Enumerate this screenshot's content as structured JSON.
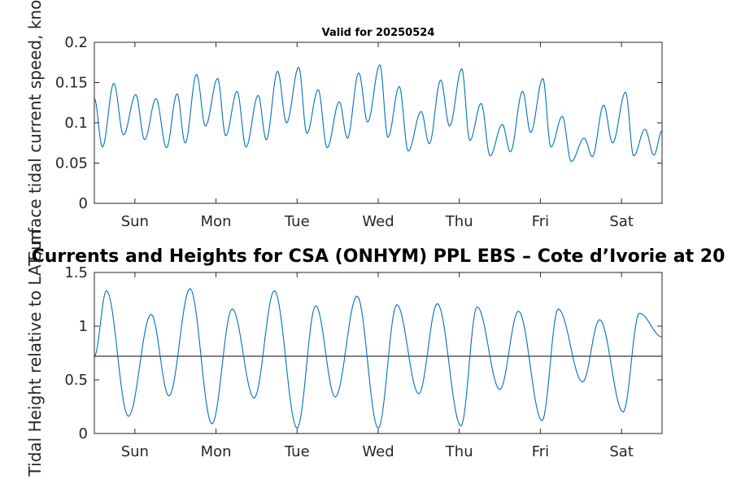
{
  "chart_data": [
    {
      "type": "line",
      "title": "Valid for 20250524",
      "ylabel": "Surface tidal current speed, knots",
      "ylim": [
        0,
        0.2
      ],
      "yticks": [
        0,
        0.05,
        0.1,
        0.15,
        0.2
      ],
      "ytick_labels": [
        "0",
        "0.05",
        "0.1",
        "0.15",
        "0.2"
      ],
      "xlim": [
        0,
        7
      ],
      "xticks": [
        0.5,
        1.5,
        2.5,
        3.5,
        4.5,
        5.5,
        6.5
      ],
      "xtick_labels": [
        "Sun",
        "Mon",
        "Tue",
        "Wed",
        "Thu",
        "Fri",
        "Sat"
      ],
      "series": [
        {
          "color": "#0072BD",
          "x": [
            0.0,
            0.1,
            0.24,
            0.36,
            0.51,
            0.62,
            0.76,
            0.89,
            1.02,
            1.12,
            1.26,
            1.37,
            1.52,
            1.62,
            1.76,
            1.87,
            2.02,
            2.12,
            2.26,
            2.37,
            2.52,
            2.62,
            2.76,
            2.87,
            3.02,
            3.12,
            3.26,
            3.37,
            3.52,
            3.62,
            3.76,
            3.87,
            4.03,
            4.13,
            4.27,
            4.38,
            4.53,
            4.63,
            4.77,
            4.88,
            5.03,
            5.13,
            5.28,
            5.38,
            5.53,
            5.63,
            5.77,
            5.88,
            6.04,
            6.14,
            6.28,
            6.39,
            6.55,
            6.65,
            6.79,
            6.9,
            7.0
          ],
          "y": [
            0.13,
            0.07,
            0.149,
            0.085,
            0.135,
            0.079,
            0.13,
            0.069,
            0.136,
            0.075,
            0.16,
            0.096,
            0.155,
            0.084,
            0.139,
            0.07,
            0.134,
            0.079,
            0.164,
            0.1,
            0.169,
            0.087,
            0.141,
            0.069,
            0.126,
            0.081,
            0.162,
            0.101,
            0.172,
            0.082,
            0.145,
            0.065,
            0.114,
            0.074,
            0.153,
            0.096,
            0.167,
            0.078,
            0.124,
            0.059,
            0.098,
            0.064,
            0.139,
            0.088,
            0.155,
            0.07,
            0.108,
            0.052,
            0.081,
            0.058,
            0.122,
            0.075,
            0.138,
            0.059,
            0.092,
            0.06,
            0.09
          ]
        }
      ]
    },
    {
      "type": "line",
      "title": "Currents and Heights for CSA (ONHYM) PPL EBS  – Cote d’Ivorie at 20",
      "ylabel": "Tidal Height relative to LAT, m",
      "ylim": [
        0,
        1.5
      ],
      "yticks": [
        0,
        0.5,
        1,
        1.5
      ],
      "ytick_labels": [
        "0",
        "0.5",
        "1",
        "1.5"
      ],
      "xlim": [
        0,
        7
      ],
      "xticks": [
        0.5,
        1.5,
        2.5,
        3.5,
        4.5,
        5.5,
        6.5
      ],
      "xtick_labels": [
        "Sun",
        "Mon",
        "Tue",
        "Wed",
        "Thu",
        "Fri",
        "Sat"
      ],
      "reference_line": 0.72,
      "series": [
        {
          "color": "#0072BD",
          "x": [
            0.0,
            0.15,
            0.42,
            0.7,
            0.92,
            1.18,
            1.45,
            1.7,
            1.97,
            2.22,
            2.5,
            2.73,
            2.97,
            3.24,
            3.5,
            3.73,
            4.0,
            4.23,
            4.52,
            4.72,
            5.0,
            5.23,
            5.52,
            5.72,
            6.02,
            6.23,
            6.52,
            6.72,
            7.0
          ],
          "y": [
            0.72,
            1.33,
            0.16,
            1.11,
            0.35,
            1.35,
            0.09,
            1.16,
            0.33,
            1.33,
            0.05,
            1.19,
            0.34,
            1.28,
            0.05,
            1.2,
            0.37,
            1.21,
            0.07,
            1.18,
            0.41,
            1.14,
            0.12,
            1.16,
            0.48,
            1.06,
            0.2,
            1.12,
            0.9
          ]
        }
      ]
    }
  ]
}
